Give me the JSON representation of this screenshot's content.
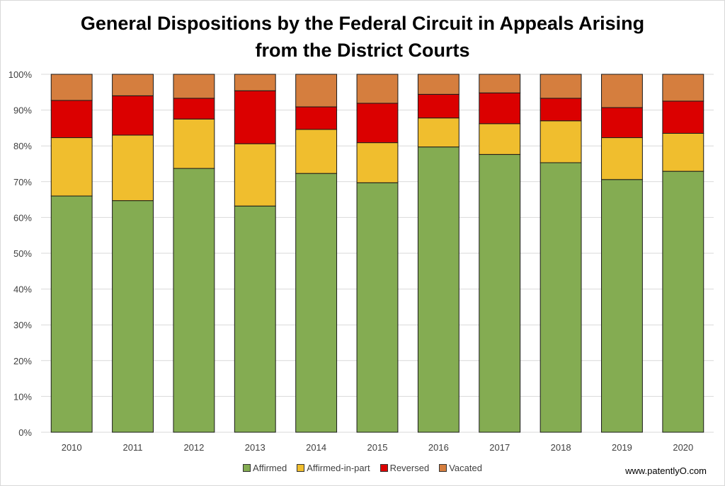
{
  "chart_data": {
    "type": "bar",
    "stacked": true,
    "title": "General Dispositions by the Federal Circuit in Appeals Arising from the District Courts",
    "title_lines": [
      "General Dispositions by the Federal Circuit in Appeals Arising",
      "from the District Courts"
    ],
    "xlabel": "",
    "ylabel": "",
    "ylim": [
      0,
      100
    ],
    "yticks": [
      "0%",
      "10%",
      "20%",
      "30%",
      "40%",
      "50%",
      "60%",
      "70%",
      "80%",
      "90%",
      "100%"
    ],
    "grid": true,
    "legend_position": "bottom",
    "categories": [
      "2010",
      "2011",
      "2012",
      "2013",
      "2014",
      "2015",
      "2016",
      "2017",
      "2018",
      "2019",
      "2020"
    ],
    "series": [
      {
        "name": "Affirmed",
        "color": "#84AC52",
        "values": [
          66.0,
          64.7,
          73.7,
          63.2,
          72.3,
          69.7,
          79.7,
          77.6,
          75.3,
          70.6,
          72.9
        ]
      },
      {
        "name": "Affirmed-in-part",
        "color": "#F0BE2E",
        "values": [
          16.3,
          18.3,
          13.8,
          17.4,
          12.3,
          11.2,
          8.1,
          8.6,
          11.7,
          11.7,
          10.6
        ]
      },
      {
        "name": "Reversed",
        "color": "#DB0000",
        "values": [
          10.4,
          11.0,
          5.8,
          14.8,
          6.3,
          11.0,
          6.6,
          8.6,
          6.3,
          8.4,
          9.0
        ]
      },
      {
        "name": "Vacated",
        "color": "#D57E3E",
        "values": [
          7.3,
          6.0,
          6.7,
          4.6,
          9.1,
          8.1,
          5.6,
          5.2,
          6.7,
          9.3,
          7.5
        ]
      }
    ]
  },
  "credit": "www.patentlyO.com"
}
